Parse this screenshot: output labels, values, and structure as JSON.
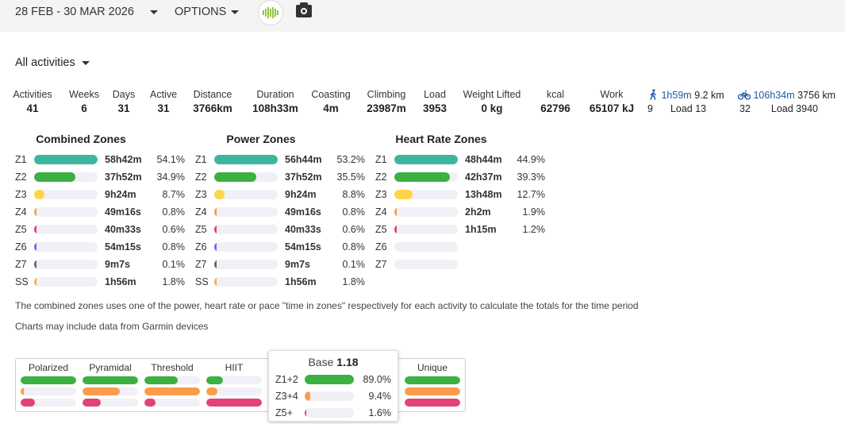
{
  "header": {
    "date_range": "28 FEB - 30 MAR 2026",
    "options": "OPTIONS",
    "logo_icon": "app-logo",
    "camera_icon": "camera-icon"
  },
  "filter": {
    "activity_type": "All activities"
  },
  "stats": [
    {
      "label": "Activities",
      "value": "41"
    },
    {
      "label": "Weeks",
      "value": "6"
    },
    {
      "label": "Days",
      "value": "31"
    },
    {
      "label": "Active",
      "value": "31"
    },
    {
      "label": "Distance",
      "value": "3766km"
    },
    {
      "label": "Duration",
      "value": "108h33m"
    },
    {
      "label": "Coasting",
      "value": "4m"
    },
    {
      "label": "Climbing",
      "value": "23987m"
    },
    {
      "label": "Load",
      "value": "3953"
    },
    {
      "label": "Weight Lifted",
      "value": "0 kg"
    },
    {
      "label": "kcal",
      "value": "62796"
    },
    {
      "label": "Work",
      "value": "65107 kJ"
    }
  ],
  "sports": [
    {
      "icon": "walk-icon",
      "time": "1h59m",
      "distance": "9.2 km",
      "count": "9",
      "load": "Load 13"
    },
    {
      "icon": "bike-icon",
      "time": "106h34m",
      "distance": "3756 km",
      "count": "32",
      "load": "Load 3940"
    }
  ],
  "zone_colors": {
    "Z1": "#3db6a0",
    "Z2": "#3cb043",
    "Z3": "#fdd54a",
    "Z4": "#fb9c4a",
    "Z5": "#e83e7a",
    "Z6": "#8a5cf6",
    "Z7": "#666666",
    "SS": "#fbad4a"
  },
  "zone_tables": [
    {
      "title": "Combined Zones",
      "rows": [
        {
          "zone": "Z1",
          "time": "58h42m",
          "pct": "54.1%",
          "frac": 1
        },
        {
          "zone": "Z2",
          "time": "37h52m",
          "pct": "34.9%",
          "frac": 0.645
        },
        {
          "zone": "Z3",
          "time": "9h24m",
          "pct": "8.7%",
          "frac": 0.161
        },
        {
          "zone": "Z4",
          "time": "49m16s",
          "pct": "0.8%",
          "frac": 0.015
        },
        {
          "zone": "Z5",
          "time": "40m33s",
          "pct": "0.6%",
          "frac": 0.011
        },
        {
          "zone": "Z6",
          "time": "54m15s",
          "pct": "0.8%",
          "frac": 0.015
        },
        {
          "zone": "Z7",
          "time": "9m7s",
          "pct": "0.1%",
          "frac": 0.002
        },
        {
          "zone": "SS",
          "time": "1h56m",
          "pct": "1.8%",
          "frac": 0.033
        }
      ]
    },
    {
      "title": "Power Zones",
      "rows": [
        {
          "zone": "Z1",
          "time": "56h44m",
          "pct": "53.2%",
          "frac": 1
        },
        {
          "zone": "Z2",
          "time": "37h52m",
          "pct": "35.5%",
          "frac": 0.667
        },
        {
          "zone": "Z3",
          "time": "9h24m",
          "pct": "8.8%",
          "frac": 0.165
        },
        {
          "zone": "Z4",
          "time": "49m16s",
          "pct": "0.8%",
          "frac": 0.015
        },
        {
          "zone": "Z5",
          "time": "40m33s",
          "pct": "0.6%",
          "frac": 0.011
        },
        {
          "zone": "Z6",
          "time": "54m15s",
          "pct": "0.8%",
          "frac": 0.015
        },
        {
          "zone": "Z7",
          "time": "9m7s",
          "pct": "0.1%",
          "frac": 0.002
        },
        {
          "zone": "SS",
          "time": "1h56m",
          "pct": "1.8%",
          "frac": 0.034
        }
      ]
    },
    {
      "title": "Heart Rate Zones",
      "rows": [
        {
          "zone": "Z1",
          "time": "48h44m",
          "pct": "44.9%",
          "frac": 1
        },
        {
          "zone": "Z2",
          "time": "42h37m",
          "pct": "39.3%",
          "frac": 0.875
        },
        {
          "zone": "Z3",
          "time": "13h48m",
          "pct": "12.7%",
          "frac": 0.283
        },
        {
          "zone": "Z4",
          "time": "2h2m",
          "pct": "1.9%",
          "frac": 0.042
        },
        {
          "zone": "Z5",
          "time": "1h15m",
          "pct": "1.2%",
          "frac": 0.027
        },
        {
          "zone": "Z6",
          "time": "",
          "pct": "",
          "frac": 0
        },
        {
          "zone": "Z7",
          "time": "",
          "pct": "",
          "frac": 0
        }
      ]
    }
  ],
  "notes": [
    "The combined zones uses one of the power, heart rate or pace \"time in zones\" respectively for each activity to calculate the totals for the time period",
    "Charts may include data from Garmin devices"
  ],
  "distribution_colors": [
    "#3cb043",
    "#fb9c4a",
    "#e34275"
  ],
  "distributions": [
    {
      "label": "Polarized",
      "levels": [
        1,
        0.05,
        0.25
      ]
    },
    {
      "label": "Pyramidal",
      "levels": [
        1,
        0.67,
        0.33
      ]
    },
    {
      "label": "Threshold",
      "levels": [
        0.6,
        1,
        0.2
      ]
    },
    {
      "label": "HIIT",
      "levels": [
        0.3,
        0.2,
        1
      ]
    },
    {
      "label": "",
      "levels": [
        0,
        0,
        0
      ]
    },
    {
      "label": "Unique",
      "levels": [
        1,
        1,
        1
      ]
    }
  ],
  "tooltip": {
    "title": "Base",
    "value": "1.18",
    "rows": [
      {
        "label": "Z1+2",
        "pct": "89.0%",
        "frac": 1
      },
      {
        "label": "Z3+4",
        "pct": "9.4%",
        "frac": 0.106
      },
      {
        "label": "Z5+",
        "pct": "1.6%",
        "frac": 0.018
      }
    ]
  }
}
